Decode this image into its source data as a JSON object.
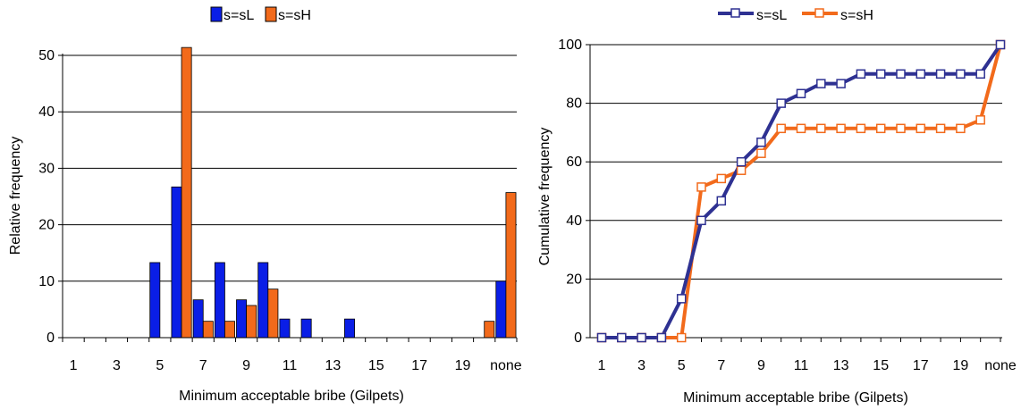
{
  "chart_data": [
    {
      "type": "bar",
      "xlabel": "Minimum acceptable bribe (Gilpets)",
      "ylabel": "Relative frequency",
      "ylim": [
        0,
        50
      ],
      "yticks": [
        "0",
        "10",
        "20",
        "30",
        "40",
        "50"
      ],
      "categories": [
        "1",
        "2",
        "3",
        "4",
        "5",
        "6",
        "7",
        "8",
        "9",
        "10",
        "11",
        "12",
        "13",
        "14",
        "15",
        "16",
        "17",
        "18",
        "19",
        "20",
        "none"
      ],
      "tick_labels": [
        "1",
        "",
        "3",
        "",
        "5",
        "",
        "7",
        "",
        "9",
        "",
        "11",
        "",
        "13",
        "",
        "15",
        "",
        "17",
        "",
        "19",
        "",
        "none"
      ],
      "grid": true,
      "legend": "top-center",
      "series": [
        {
          "name": "s=sL",
          "color": "#0a1ee6",
          "values": [
            0,
            0,
            0,
            0,
            13.3,
            26.7,
            6.7,
            13.3,
            6.7,
            13.3,
            3.3,
            3.3,
            0,
            3.3,
            0,
            0,
            0,
            0,
            0,
            0,
            10
          ]
        },
        {
          "name": "s=sH",
          "color": "#f26a1b",
          "values": [
            0,
            0,
            0,
            0,
            0,
            51.4,
            2.9,
            2.9,
            5.7,
            8.6,
            0,
            0,
            0,
            0,
            0,
            0,
            0,
            0,
            0,
            2.9,
            25.7
          ]
        }
      ]
    },
    {
      "type": "line",
      "xlabel": "Minimum acceptable bribe (Gilpets)",
      "ylabel": "Cumulative frequency",
      "ylim": [
        0,
        100
      ],
      "yticks": [
        "0",
        "20",
        "40",
        "60",
        "80",
        "100"
      ],
      "categories": [
        "1",
        "2",
        "3",
        "4",
        "5",
        "6",
        "7",
        "8",
        "9",
        "10",
        "11",
        "12",
        "13",
        "14",
        "15",
        "16",
        "17",
        "18",
        "19",
        "20",
        "none"
      ],
      "tick_labels": [
        "1",
        "",
        "3",
        "",
        "5",
        "",
        "7",
        "",
        "9",
        "",
        "11",
        "",
        "13",
        "",
        "15",
        "",
        "17",
        "",
        "19",
        "",
        "none"
      ],
      "grid": true,
      "legend": "top-center",
      "series": [
        {
          "name": "s=sL",
          "color": "#2e3192",
          "values": [
            0,
            0,
            0,
            0,
            13.3,
            40,
            46.7,
            60,
            66.7,
            80,
            83.3,
            86.7,
            86.7,
            90,
            90,
            90,
            90,
            90,
            90,
            90,
            100
          ]
        },
        {
          "name": "s=sH",
          "color": "#f26a1b",
          "values": [
            0,
            0,
            0,
            0,
            0,
            51.4,
            54.3,
            57.1,
            62.9,
            71.4,
            71.4,
            71.4,
            71.4,
            71.4,
            71.4,
            71.4,
            71.4,
            71.4,
            71.4,
            74.3,
            100
          ]
        }
      ]
    }
  ]
}
